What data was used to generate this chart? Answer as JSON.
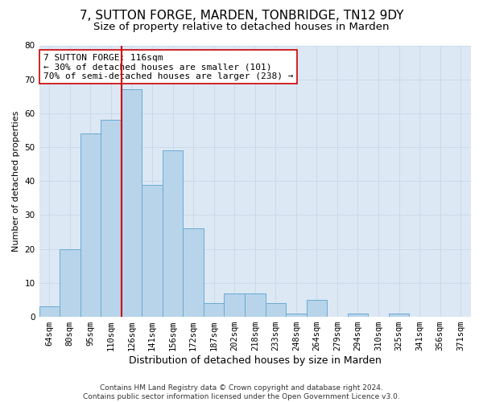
{
  "title1": "7, SUTTON FORGE, MARDEN, TONBRIDGE, TN12 9DY",
  "title2": "Size of property relative to detached houses in Marden",
  "xlabel": "Distribution of detached houses by size in Marden",
  "ylabel": "Number of detached properties",
  "categories": [
    "64sqm",
    "80sqm",
    "95sqm",
    "110sqm",
    "126sqm",
    "141sqm",
    "156sqm",
    "172sqm",
    "187sqm",
    "202sqm",
    "218sqm",
    "233sqm",
    "248sqm",
    "264sqm",
    "279sqm",
    "294sqm",
    "310sqm",
    "325sqm",
    "341sqm",
    "356sqm",
    "371sqm"
  ],
  "values": [
    3,
    20,
    54,
    58,
    67,
    39,
    49,
    26,
    4,
    7,
    7,
    4,
    1,
    5,
    0,
    1,
    0,
    1,
    0,
    0,
    0
  ],
  "bar_color": "#b8d4ea",
  "bar_edge_color": "#6aaad4",
  "vline_x_index": 3.5,
  "vline_color": "#cc0000",
  "annotation_text": "7 SUTTON FORGE: 116sqm\n← 30% of detached houses are smaller (101)\n70% of semi-detached houses are larger (238) →",
  "annotation_box_color": "#ffffff",
  "annotation_box_edge": "#cc0000",
  "ylim": [
    0,
    80
  ],
  "yticks": [
    0,
    10,
    20,
    30,
    40,
    50,
    60,
    70,
    80
  ],
  "grid_color": "#c8d8e8",
  "bg_color": "#dce8f4",
  "footer_text": "Contains HM Land Registry data © Crown copyright and database right 2024.\nContains public sector information licensed under the Open Government Licence v3.0.",
  "title1_fontsize": 11,
  "title2_fontsize": 9.5,
  "xlabel_fontsize": 9,
  "ylabel_fontsize": 8,
  "tick_fontsize": 7.5,
  "annotation_fontsize": 8,
  "footer_fontsize": 6.5
}
